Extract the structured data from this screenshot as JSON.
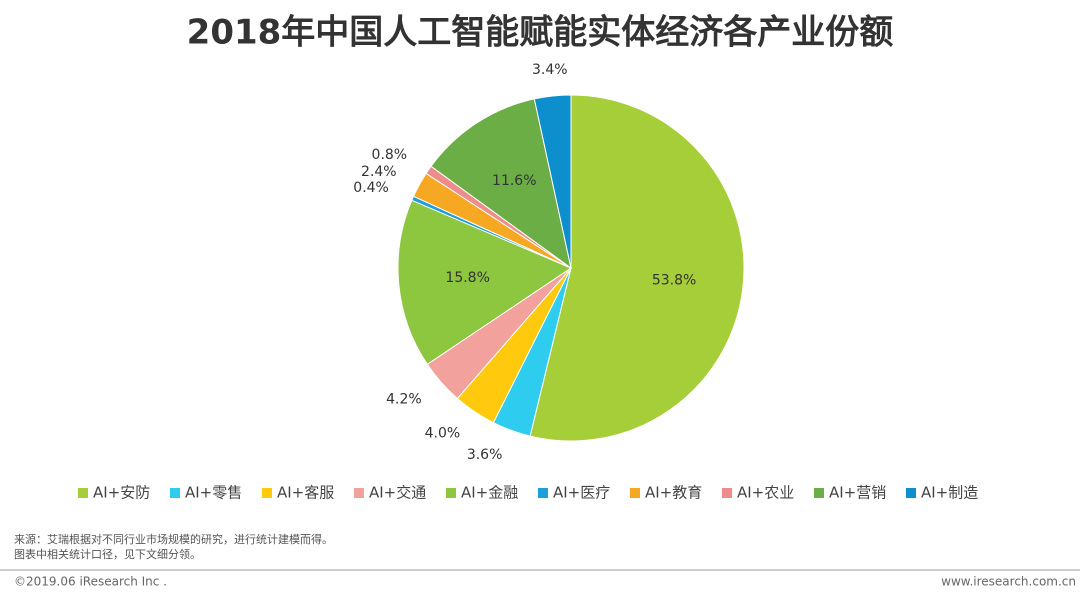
{
  "chart_data": {
    "type": "pie",
    "title": "2018年中国人工智能赋能实体经济各产业份额",
    "categories": [
      "AI+安防",
      "AI+零售",
      "AI+客服",
      "AI+交通",
      "AI+金融",
      "AI+医疗",
      "AI+教育",
      "AI+农业",
      "AI+营销",
      "AI+制造"
    ],
    "values": [
      53.8,
      3.6,
      4.0,
      4.2,
      15.8,
      0.4,
      2.4,
      0.8,
      11.6,
      3.4
    ],
    "value_labels": [
      "53.8%",
      "3.6%",
      "4.0%",
      "4.2%",
      "15.8%",
      "0.4%",
      "2.4%",
      "0.8%",
      "11.6%",
      "3.4%"
    ],
    "colors": [
      "#a6ce39",
      "#2ecdf0",
      "#ffc90e",
      "#f2a19c",
      "#8dc63f",
      "#1e9fd9",
      "#f7a823",
      "#ee8b8b",
      "#6cae46",
      "#0e8fcd"
    ],
    "legend": "bottom",
    "source": [
      "来源：艾瑞根据对不同行业市场规模的研究，进行统计建模而得。",
      "图表中相关统计口径，见下文细分领。"
    ],
    "footer_left": "©2019.06 iResearch Inc .",
    "footer_right": "www.iresearch.com.cn"
  }
}
